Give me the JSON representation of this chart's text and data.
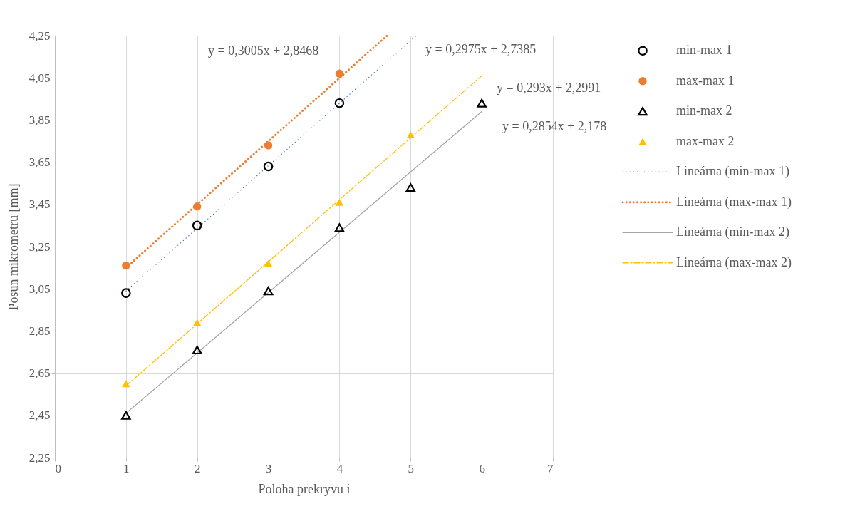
{
  "chart_data": {
    "type": "scatter",
    "xlabel": "Poloha prekryvu i",
    "ylabel": "Posun mikrometru [mm]",
    "xlim": [
      0,
      7
    ],
    "xticks": [
      0,
      1,
      2,
      3,
      4,
      5,
      6,
      7
    ],
    "ylim": [
      2.25,
      4.25
    ],
    "yticks": [
      {
        "value": 2.25,
        "label": "2,25"
      },
      {
        "value": 2.45,
        "label": "2,45"
      },
      {
        "value": 2.65,
        "label": "2,65"
      },
      {
        "value": 2.85,
        "label": "2,85"
      },
      {
        "value": 3.05,
        "label": "3,05"
      },
      {
        "value": 3.25,
        "label": "3,25"
      },
      {
        "value": 3.45,
        "label": "3,45"
      },
      {
        "value": 3.65,
        "label": "3,65"
      },
      {
        "value": 3.85,
        "label": "3,85"
      },
      {
        "value": 4.05,
        "label": "4,05"
      },
      {
        "value": 4.25,
        "label": "4,25"
      }
    ],
    "grid": true,
    "legend": "right",
    "series": [
      {
        "name": "min-max 1",
        "type": "scatter",
        "marker": "circle",
        "color": "#000000",
        "x": [
          1,
          2,
          3,
          4
        ],
        "values": [
          3.03,
          3.35,
          3.63,
          3.93
        ]
      },
      {
        "name": "max-max 1",
        "type": "scatter",
        "marker": "circle",
        "color": "#ed7d31",
        "x": [
          1,
          2,
          3,
          4
        ],
        "values": [
          3.16,
          3.44,
          3.73,
          4.07
        ]
      },
      {
        "name": "min-max 2",
        "type": "scatter",
        "marker": "triangle",
        "color": "#000000",
        "x": [
          1,
          2,
          3,
          4,
          5,
          6
        ],
        "values": [
          2.45,
          2.76,
          3.04,
          3.34,
          3.53,
          3.93
        ]
      },
      {
        "name": "max-max 2",
        "type": "scatter",
        "marker": "triangle",
        "color": "#ffc000",
        "x": [
          1,
          2,
          3,
          4,
          5
        ],
        "values": [
          2.6,
          2.89,
          3.17,
          3.46,
          3.78
        ]
      },
      {
        "name": "Lineárna (min-max 1)",
        "type": "line",
        "line_style": "dotted",
        "color": "#4472c4",
        "x": [
          1,
          5.08
        ],
        "values": [
          3.04,
          4.25
        ]
      },
      {
        "name": "Lineárna (max-max 1)",
        "type": "line",
        "line_style": "dotted",
        "color": "#ed7d31",
        "x": [
          1,
          4.67
        ],
        "values": [
          3.15,
          4.25
        ]
      },
      {
        "name": "Lineárna (min-max 2)",
        "type": "line",
        "line_style": "solid",
        "color": "#a5a5a5",
        "x": [
          1,
          6
        ],
        "values": [
          2.46,
          3.89
        ]
      },
      {
        "name": "Lineárna (max-max 2)",
        "type": "line",
        "line_style": "dashed",
        "color": "#ffc000",
        "x": [
          1,
          6
        ],
        "values": [
          2.59,
          4.06
        ]
      }
    ],
    "annotations": [
      "y = 0,3005x + 2,8468",
      "y = 0,2975x + 2,7385",
      "y = 0,293x + 2,2991",
      "y = 0,2854x + 2,178"
    ]
  }
}
